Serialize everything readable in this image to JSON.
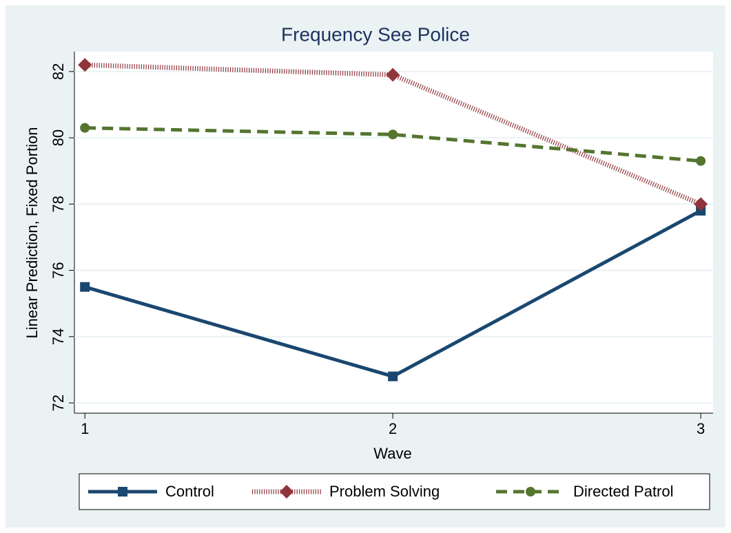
{
  "chart_data": {
    "type": "line",
    "title": "Frequency See Police",
    "x_label": "Wave",
    "y_label": "Linear Prediction, Fixed Portion",
    "x": [
      1,
      2,
      3
    ],
    "series": [
      {
        "name": "Control",
        "color": "#1a476f",
        "marker": "square",
        "style": "solid",
        "values": [
          75.5,
          72.8,
          77.8
        ]
      },
      {
        "name": "Problem Solving",
        "color": "#90353b",
        "marker": "diamond",
        "style": "hatched",
        "values": [
          82.2,
          81.9,
          78.0
        ]
      },
      {
        "name": "Directed Patrol",
        "color": "#55752f",
        "marker": "circle",
        "style": "dashed",
        "values": [
          80.3,
          80.1,
          79.3
        ]
      }
    ],
    "xlim": [
      0.966,
      3.04
    ],
    "xticks": [
      1,
      2,
      3
    ],
    "ylim": [
      71.69,
      82.6
    ],
    "yticks": [
      72,
      74,
      76,
      78,
      80,
      82
    ],
    "grid": true,
    "legend": "bottom"
  }
}
